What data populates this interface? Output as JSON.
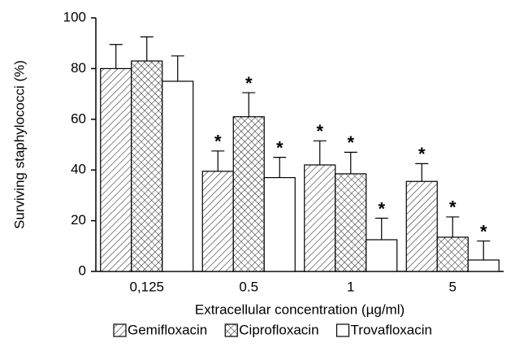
{
  "chart_data": {
    "type": "bar",
    "x_label": "Extracellular concentration (µg/ml)",
    "y_label": "Surviving staphylococci (%)",
    "categories": [
      "0,125",
      "0.5",
      "1",
      "5"
    ],
    "series": [
      {
        "name": "Gemifloxacin",
        "color": "#000000",
        "pattern": "diagonal",
        "values": [
          80,
          39.5,
          42,
          35.5
        ],
        "errors": [
          9.5,
          8,
          9.5,
          7
        ],
        "markers": [
          null,
          "*",
          "*",
          "*"
        ]
      },
      {
        "name": "Ciprofloxacin",
        "color": "#000000",
        "pattern": "crosshatch",
        "values": [
          83,
          61,
          38.5,
          13.5
        ],
        "errors": [
          9.5,
          9.5,
          8.5,
          8
        ],
        "markers": [
          null,
          "*",
          "*",
          "*"
        ]
      },
      {
        "name": "Trovafloxacin",
        "color": "#000000",
        "pattern": "none",
        "values": [
          75,
          37,
          12.5,
          4.5
        ],
        "errors": [
          10,
          8,
          8.5,
          7.5
        ],
        "markers": [
          null,
          "*",
          "*",
          "*"
        ]
      }
    ],
    "ylim": [
      0,
      100
    ],
    "yticks": [
      0,
      20,
      40,
      60,
      80,
      100
    ],
    "grid": false
  }
}
